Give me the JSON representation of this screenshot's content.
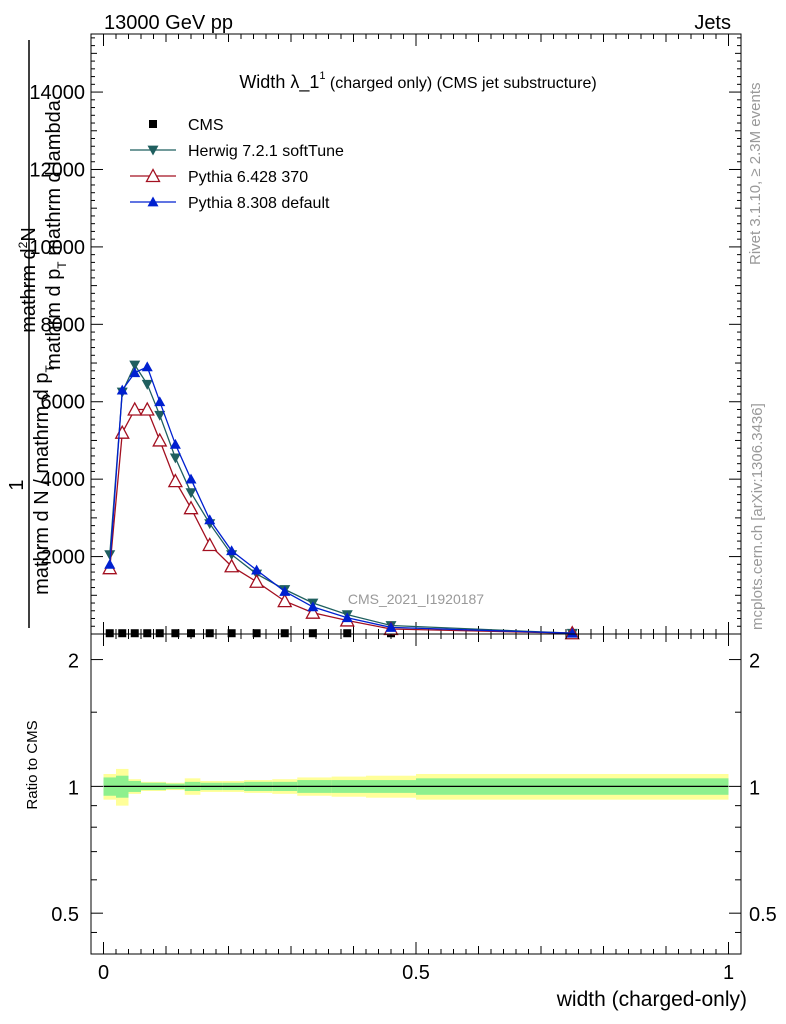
{
  "header": {
    "energy_label": "13000 GeV pp",
    "category_label": "Jets"
  },
  "side_text": {
    "rivet": "Rivet 3.1.10, ≥ 2.3M events",
    "mcplots": "mcplots.cern.ch [arXiv:1306.3436]"
  },
  "analysis_label": "CMS_2021_I1920187",
  "chart_data": [
    {
      "type": "line",
      "title_main": "Width λ_1",
      "title_sup": "1",
      "title_rest": " (charged only) (CMS jet substructure)",
      "ylabel_top_num": "mathrm d",
      "ylabel_top_sup": "2",
      "ylabel_top_N": "N",
      "ylabel_top_den": "mathrm d p",
      "ylabel_top_sub": "T",
      "ylabel_top_rest": " mathrm d lambda",
      "ylabel_one": "1",
      "ylabel_bottom": "mathrm d N / mathrm d p",
      "ylabel_bottom_sub": "T",
      "xlim": [
        -0.02,
        1.02
      ],
      "ylim": [
        0,
        15500
      ],
      "yticks": [
        2000,
        4000,
        6000,
        8000,
        10000,
        12000,
        14000
      ],
      "ytick_labels": [
        "2000",
        "4000",
        "6000",
        "8000",
        "10000",
        "12000",
        "14000"
      ],
      "legend_position": "upper-left",
      "series": [
        {
          "name": "CMS",
          "color": "#000000",
          "marker": "square",
          "x": [
            0.01,
            0.03,
            0.05,
            0.07,
            0.09,
            0.115,
            0.14,
            0.17,
            0.205,
            0.245,
            0.29,
            0.335,
            0.39,
            0.46,
            0.75
          ],
          "y": [
            20,
            20,
            20,
            20,
            20,
            20,
            20,
            20,
            20,
            20,
            20,
            20,
            20,
            20,
            20
          ]
        },
        {
          "name": "Herwig 7.2.1 softTune",
          "color": "#1f5f5f",
          "marker": "triangle-down",
          "x": [
            0.01,
            0.03,
            0.05,
            0.07,
            0.09,
            0.115,
            0.14,
            0.17,
            0.205,
            0.245,
            0.29,
            0.335,
            0.39,
            0.46,
            0.75
          ],
          "y": [
            2050,
            6250,
            6950,
            6450,
            5650,
            4550,
            3650,
            2850,
            2050,
            1550,
            1150,
            800,
            500,
            220,
            20
          ]
        },
        {
          "name": "Pythia 6.428 370",
          "color": "#a31020",
          "marker": "triangle-open",
          "x": [
            0.01,
            0.03,
            0.05,
            0.07,
            0.09,
            0.115,
            0.14,
            0.17,
            0.205,
            0.245,
            0.29,
            0.335,
            0.39,
            0.46,
            0.75
          ],
          "y": [
            1700,
            5200,
            5800,
            5800,
            5000,
            3950,
            3250,
            2300,
            1750,
            1350,
            850,
            550,
            350,
            130,
            20
          ]
        },
        {
          "name": "Pythia 8.308 default",
          "color": "#0020d0",
          "marker": "triangle-up",
          "x": [
            0.01,
            0.03,
            0.05,
            0.07,
            0.09,
            0.115,
            0.14,
            0.17,
            0.205,
            0.245,
            0.29,
            0.335,
            0.39,
            0.46,
            0.75
          ],
          "y": [
            1800,
            6300,
            6750,
            6900,
            6000,
            4900,
            4000,
            2950,
            2150,
            1650,
            1100,
            700,
            420,
            170,
            20
          ]
        }
      ]
    },
    {
      "type": "area",
      "xlabel": "width (charged-only)",
      "ylabel": "Ratio to CMS",
      "xlim": [
        -0.02,
        1.02
      ],
      "ylim": [
        0.4,
        2.3
      ],
      "yscale": "log",
      "yticks": [
        0.5,
        1,
        2
      ],
      "ytick_labels": [
        "0.5",
        "1",
        "2"
      ],
      "xticks": [
        0,
        0.5,
        1
      ],
      "xtick_labels": [
        "0",
        "0.5",
        "1"
      ],
      "reference_line": 1,
      "bands": {
        "bin_edges": [
          0.0,
          0.02,
          0.04,
          0.06,
          0.08,
          0.1,
          0.13,
          0.155,
          0.19,
          0.225,
          0.27,
          0.31,
          0.365,
          0.42,
          0.5,
          1.0
        ],
        "stat_color": "#8ef08e",
        "total_color": "#ffff99",
        "stat_err": [
          0.05,
          0.06,
          0.03,
          0.02,
          0.02,
          0.015,
          0.025,
          0.02,
          0.02,
          0.025,
          0.025,
          0.035,
          0.035,
          0.035,
          0.045
        ],
        "total_err": [
          0.07,
          0.1,
          0.04,
          0.025,
          0.025,
          0.02,
          0.045,
          0.03,
          0.03,
          0.035,
          0.04,
          0.05,
          0.055,
          0.06,
          0.07
        ]
      }
    }
  ]
}
